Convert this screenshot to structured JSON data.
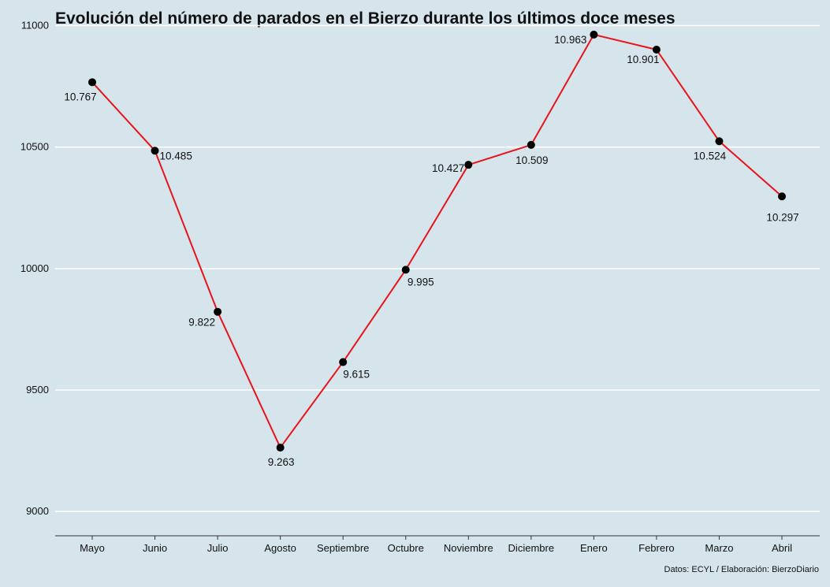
{
  "chart_data": {
    "type": "line",
    "title": "Evolución del número de parados en el Bierzo durante los últimos doce meses",
    "xlabel": "",
    "ylabel": "",
    "categories": [
      "Mayo",
      "Junio",
      "Julio",
      "Agosto",
      "Septiembre",
      "Octubre",
      "Noviembre",
      "Diciembre",
      "Enero",
      "Febrero",
      "Marzo",
      "Abril"
    ],
    "series": [
      {
        "values": [
          10767,
          10485,
          9822,
          9263,
          9615,
          9995,
          10427,
          10509,
          10963,
          10901,
          10524,
          10297
        ],
        "value_labels": [
          "10.767",
          "10.485",
          "9.822",
          "9.263",
          "9.615",
          "9.995",
          "10.427",
          "10.509",
          "10.963",
          "10.901",
          "10.524",
          "10.297"
        ]
      }
    ],
    "ylim": [
      8900,
      11060
    ],
    "yticks": [
      9000,
      9500,
      10000,
      10500,
      11000
    ],
    "ytick_labels": [
      "9000",
      "9500",
      "10000",
      "10500",
      "11000"
    ],
    "grid": true,
    "legend": "none",
    "colors": {
      "background": "#d6e4eb",
      "line": "#e8141c",
      "marker": "#000000",
      "grid": "#ffffff",
      "axis": "#333333"
    },
    "source": "Datos: ECYL / Elaboración: BierzoDiario"
  }
}
